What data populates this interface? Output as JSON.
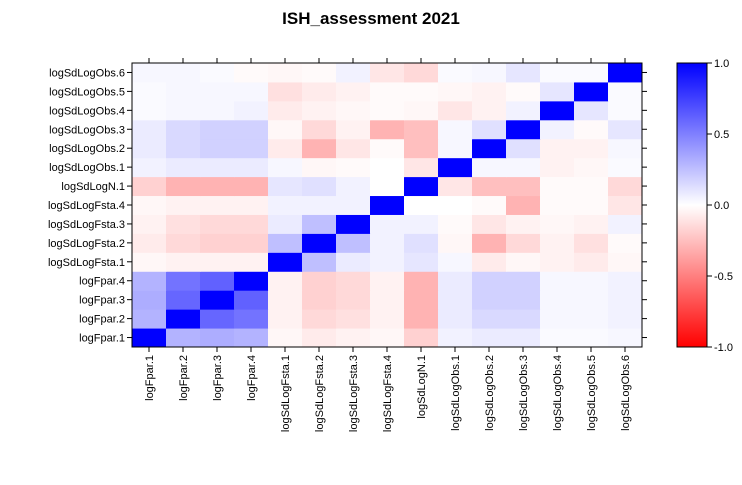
{
  "chart_data": {
    "type": "heatmap",
    "title": "ISH_assessment 2021",
    "xlabel": "",
    "ylabel": "",
    "variables": [
      "logFpar.1",
      "logFpar.2",
      "logFpar.3",
      "logFpar.4",
      "logSdLogFsta.1",
      "logSdLogFsta.2",
      "logSdLogFsta.3",
      "logSdLogFsta.4",
      "logSdLogN.1",
      "logSdLogObs.1",
      "logSdLogObs.2",
      "logSdLogObs.3",
      "logSdLogObs.4",
      "logSdLogObs.5",
      "logSdLogObs.6"
    ],
    "matrix": [
      [
        1.0,
        0.3,
        0.32,
        0.3,
        -0.03,
        -0.08,
        -0.05,
        -0.03,
        -0.18,
        0.05,
        0.08,
        0.08,
        0.02,
        0.02,
        0.03
      ],
      [
        0.3,
        1.0,
        0.6,
        0.55,
        -0.05,
        -0.15,
        -0.12,
        -0.05,
        -0.3,
        0.08,
        0.15,
        0.15,
        0.03,
        0.03,
        0.05
      ],
      [
        0.32,
        0.6,
        1.0,
        0.62,
        -0.05,
        -0.18,
        -0.15,
        -0.05,
        -0.3,
        0.08,
        0.18,
        0.18,
        0.03,
        0.03,
        0.05
      ],
      [
        0.3,
        0.55,
        0.62,
        1.0,
        -0.05,
        -0.18,
        -0.15,
        -0.05,
        -0.3,
        0.08,
        0.18,
        0.18,
        0.03,
        0.03,
        0.05
      ],
      [
        -0.03,
        -0.05,
        -0.05,
        -0.05,
        1.0,
        0.25,
        0.08,
        0.05,
        0.1,
        0.03,
        -0.08,
        -0.03,
        -0.05,
        -0.08,
        -0.03
      ],
      [
        -0.08,
        -0.15,
        -0.18,
        -0.18,
        0.25,
        1.0,
        0.25,
        0.05,
        0.12,
        -0.03,
        -0.3,
        -0.15,
        -0.05,
        -0.12,
        -0.02
      ],
      [
        -0.05,
        -0.12,
        -0.15,
        -0.15,
        0.08,
        0.25,
        1.0,
        0.05,
        0.05,
        -0.02,
        -0.1,
        -0.05,
        -0.03,
        -0.05,
        0.05
      ],
      [
        -0.03,
        -0.05,
        -0.05,
        -0.05,
        0.05,
        0.05,
        0.05,
        1.0,
        0.0,
        0.0,
        -0.02,
        -0.3,
        -0.02,
        -0.02,
        -0.1
      ],
      [
        -0.18,
        -0.3,
        -0.3,
        -0.3,
        0.1,
        0.12,
        0.05,
        0.0,
        1.0,
        -0.1,
        -0.25,
        -0.25,
        -0.02,
        -0.02,
        -0.15
      ],
      [
        0.05,
        0.08,
        0.08,
        0.08,
        0.03,
        -0.03,
        -0.02,
        0.0,
        -0.1,
        1.0,
        0.03,
        0.03,
        -0.05,
        -0.03,
        0.02
      ],
      [
        0.08,
        0.15,
        0.18,
        0.18,
        -0.08,
        -0.3,
        -0.1,
        -0.02,
        -0.25,
        0.03,
        1.0,
        0.12,
        -0.05,
        -0.05,
        0.03
      ],
      [
        0.08,
        0.15,
        0.18,
        0.18,
        -0.03,
        -0.15,
        -0.05,
        -0.3,
        -0.25,
        0.03,
        0.12,
        1.0,
        0.05,
        -0.02,
        0.1
      ],
      [
        0.02,
        0.03,
        0.03,
        0.05,
        -0.08,
        -0.05,
        -0.03,
        -0.02,
        -0.03,
        -0.1,
        -0.05,
        0.05,
        1.0,
        0.1,
        0.02
      ],
      [
        0.02,
        0.03,
        0.03,
        0.03,
        -0.12,
        -0.08,
        -0.05,
        -0.02,
        -0.02,
        -0.03,
        -0.05,
        -0.02,
        0.1,
        1.0,
        0.02
      ],
      [
        0.03,
        0.03,
        0.02,
        -0.02,
        -0.03,
        -0.02,
        0.05,
        -0.1,
        -0.15,
        0.02,
        0.03,
        0.1,
        0.02,
        0.02,
        1.0
      ]
    ],
    "color_scale": {
      "min": -1.0,
      "max": 1.0,
      "low_color": "#ff0000",
      "mid_color": "#ffffff",
      "high_color": "#0000ff",
      "ticks": [
        "-1.0",
        "-0.5",
        "0.0",
        "0.5",
        "1.0"
      ],
      "tick_values": [
        -1.0,
        -0.5,
        0.0,
        0.5,
        1.0
      ]
    },
    "grid": false,
    "legend": "right"
  }
}
